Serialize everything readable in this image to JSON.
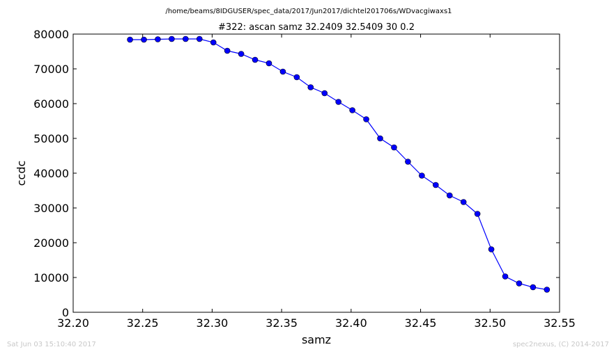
{
  "supertitle": "/home/beams/8IDGUSER/spec_data/2017/Jun2017/dichtel201706s/WDvacgiwaxs1",
  "footer": {
    "timestamp": "Sat Jun 03 15:10:40 2017",
    "credit": "spec2nexus, (C) 2014-2017"
  },
  "chart_data": {
    "type": "line",
    "title": "#322: ascan  samz 32.2409 32.5409  30 0.2",
    "xlabel": "samz",
    "ylabel": "ccdc",
    "xlim": [
      32.2,
      32.55
    ],
    "ylim": [
      0,
      80000
    ],
    "xticks": [
      32.2,
      32.25,
      32.3,
      32.35,
      32.4,
      32.45,
      32.5,
      32.55
    ],
    "xtick_labels": [
      "32.20",
      "32.25",
      "32.30",
      "32.35",
      "32.40",
      "32.45",
      "32.50",
      "32.55"
    ],
    "yticks": [
      0,
      10000,
      20000,
      30000,
      40000,
      50000,
      60000,
      70000,
      80000
    ],
    "ytick_labels": [
      "0",
      "10000",
      "20000",
      "30000",
      "40000",
      "50000",
      "60000",
      "70000",
      "80000"
    ],
    "grid": false,
    "color": "#0000ff",
    "series": [
      {
        "x": [
          32.2409,
          32.2509,
          32.2609,
          32.2709,
          32.2809,
          32.2909,
          32.3009,
          32.3109,
          32.3209,
          32.3309,
          32.3409,
          32.3509,
          32.3609,
          32.3709,
          32.3809,
          32.3909,
          32.4009,
          32.4109,
          32.4209,
          32.4309,
          32.4409,
          32.4509,
          32.4609,
          32.4709,
          32.4809,
          32.4909,
          32.5009,
          32.5109,
          32.5209,
          32.5309,
          32.5409
        ],
        "y": [
          78400,
          78400,
          78500,
          78600,
          78600,
          78600,
          77600,
          75200,
          74300,
          72600,
          71600,
          69200,
          67600,
          64700,
          63000,
          60500,
          58100,
          55500,
          50000,
          47400,
          43300,
          39300,
          36600,
          33600,
          31700,
          28300,
          18100,
          10300,
          8300,
          7200,
          6500
        ]
      }
    ]
  }
}
